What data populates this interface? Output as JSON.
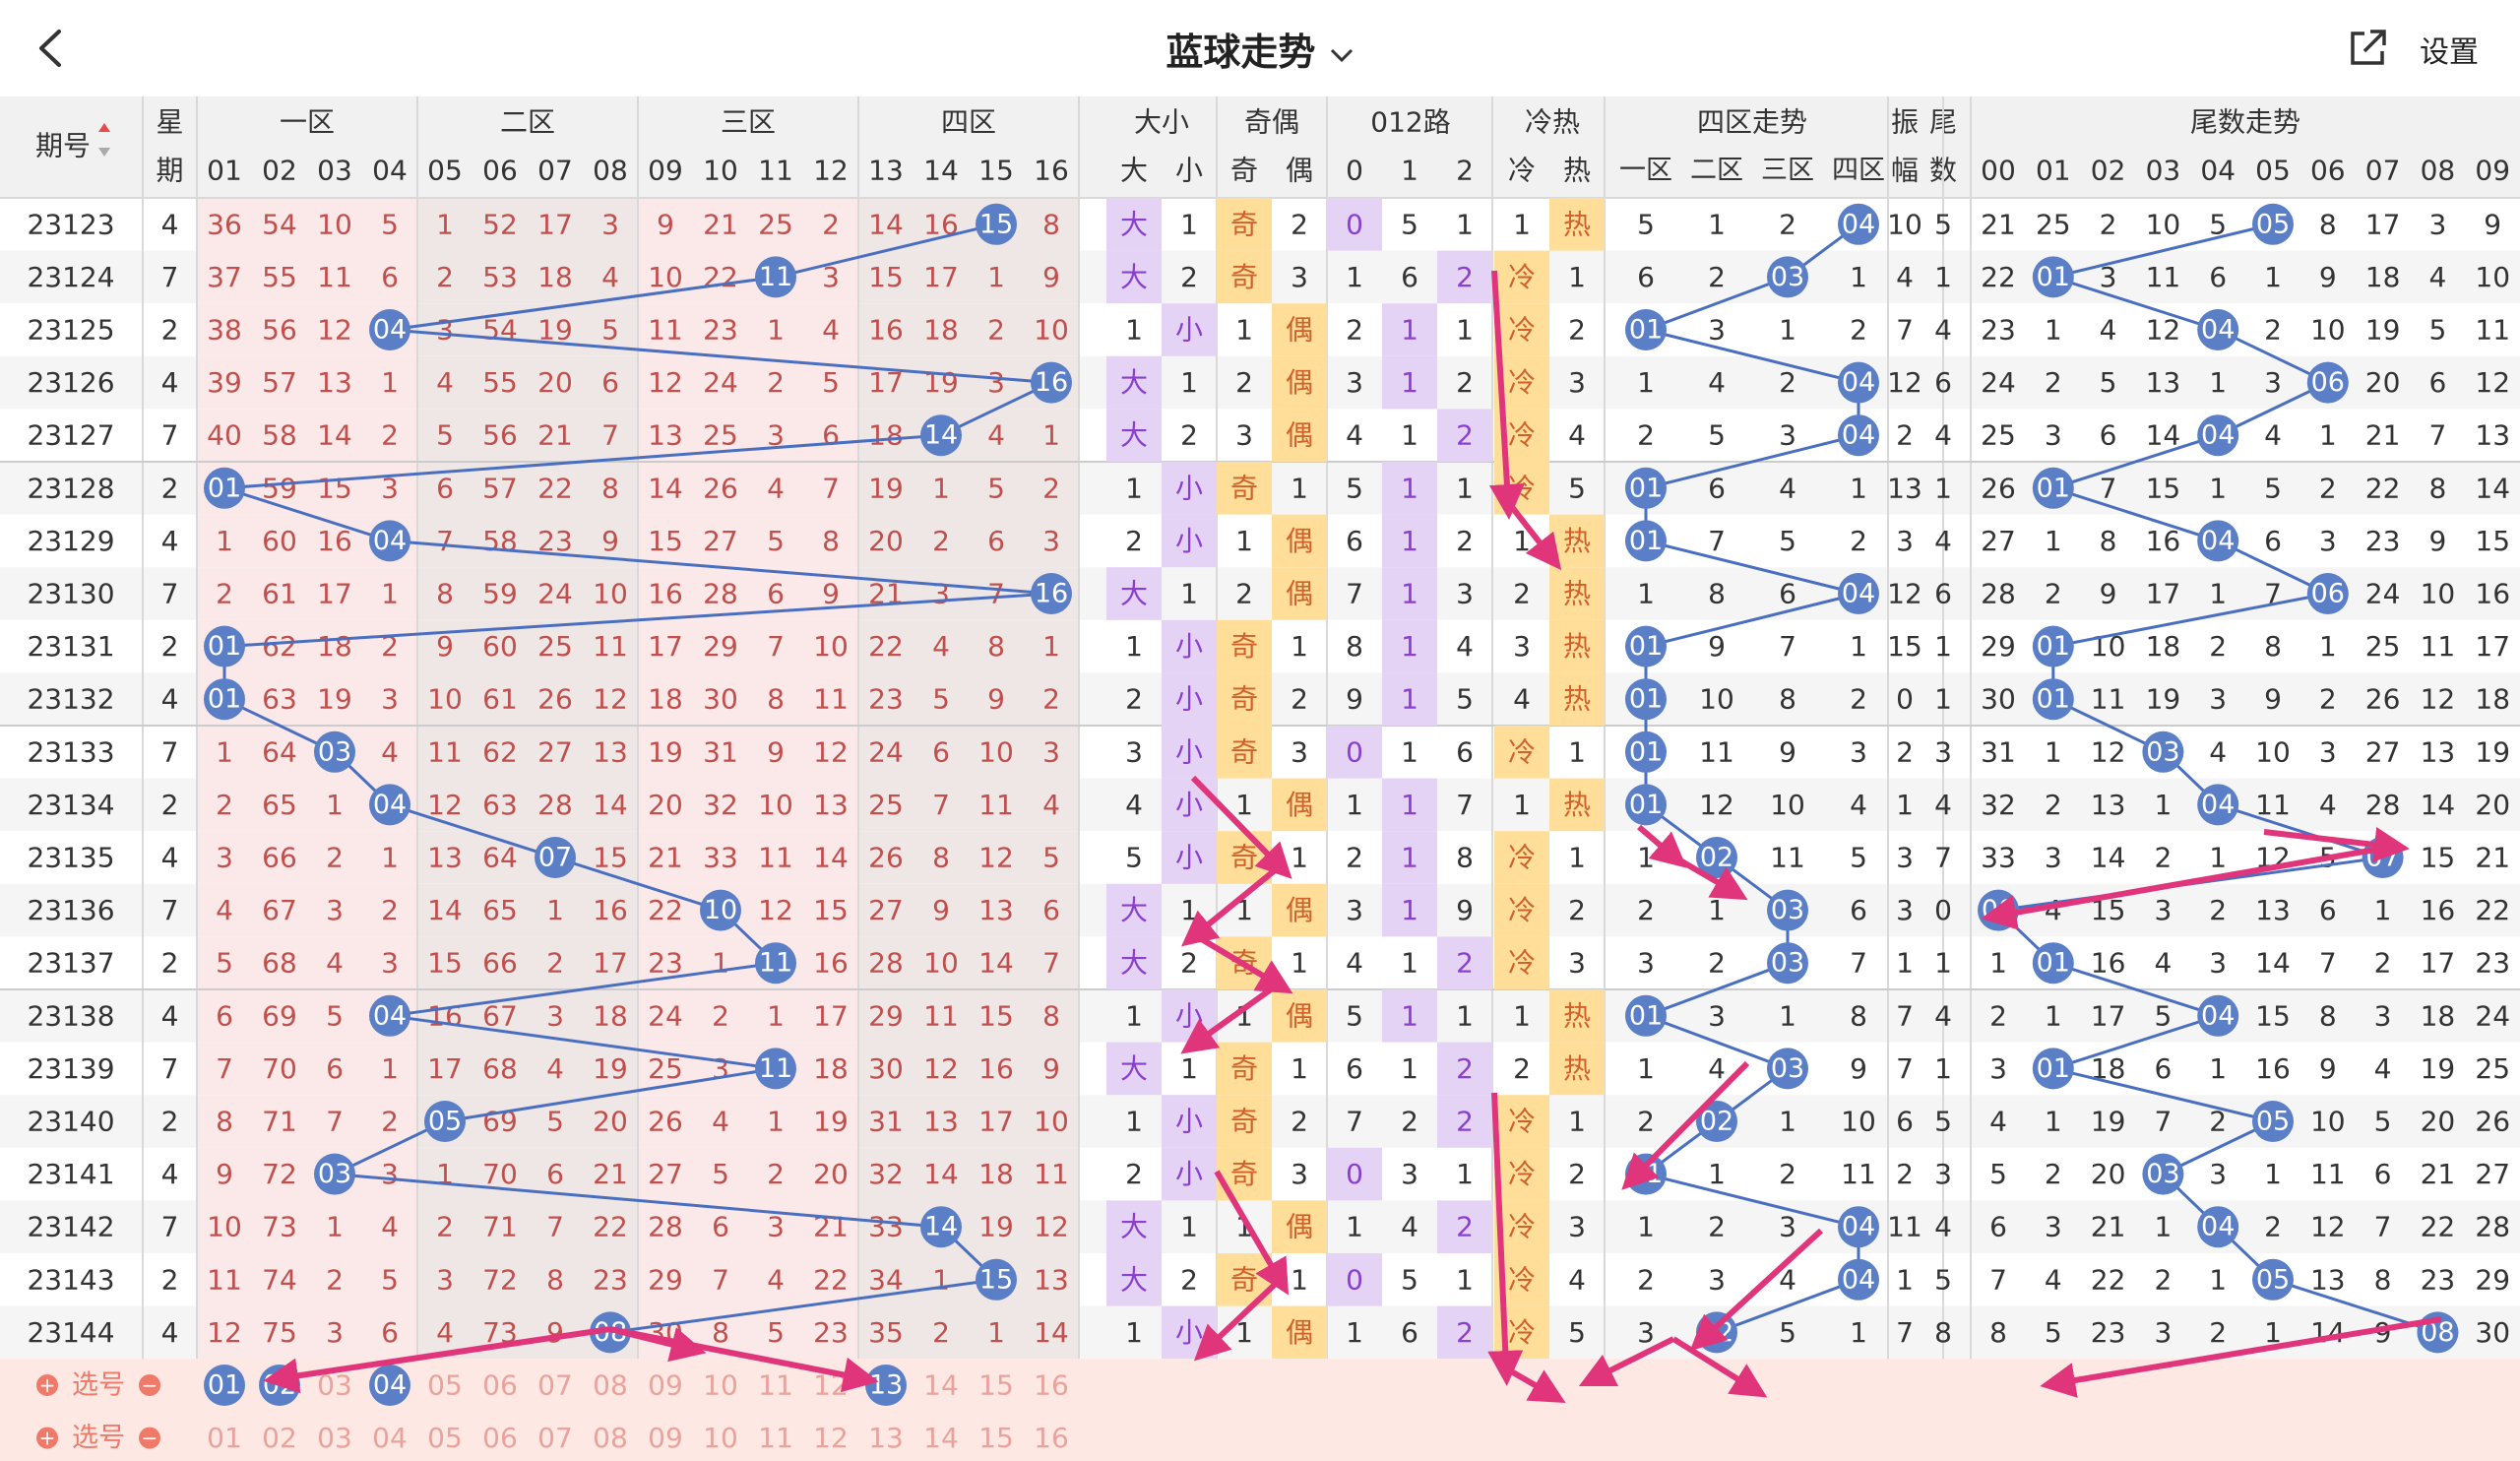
{
  "header": {
    "title": "蓝球走势",
    "settings_label": "设置"
  },
  "col_headers": {
    "issue": "期号",
    "week_top": "星",
    "week_bottom": "期",
    "zones": [
      "一区",
      "二区",
      "三区",
      "四区"
    ],
    "size": "大小",
    "size_sub": [
      "大",
      "小"
    ],
    "parity": "奇偶",
    "parity_sub": [
      "奇",
      "偶"
    ],
    "road": "012路",
    "road_sub": [
      "0",
      "1",
      "2"
    ],
    "hotcold": "冷热",
    "hotcold_sub": [
      "冷",
      "热"
    ],
    "zone_trend": "四区走势",
    "zone_trend_sub": [
      "一区",
      "二区",
      "三区",
      "四区"
    ],
    "amp_top": "振",
    "amp_bottom": "幅",
    "tail_top": "尾",
    "tail_bottom": "数",
    "tail_trend": "尾数走势",
    "numbers": [
      "01",
      "02",
      "03",
      "04",
      "05",
      "06",
      "07",
      "08",
      "09",
      "10",
      "11",
      "12",
      "13",
      "14",
      "15",
      "16"
    ],
    "tail_digits": [
      "00",
      "01",
      "02",
      "03",
      "04",
      "05",
      "06",
      "07",
      "08",
      "09"
    ]
  },
  "rows": [
    {
      "issue": "23123",
      "week": "4",
      "ball": 15,
      "misses": [
        36,
        54,
        10,
        5,
        1,
        52,
        17,
        3,
        9,
        21,
        25,
        2,
        14,
        16,
        0,
        8
      ],
      "size": "大",
      "size_o": 1,
      "parity": "奇",
      "parity_o": 2,
      "road": 0,
      "road_o": [
        0,
        5,
        1
      ],
      "hc": "热",
      "hc_o": 1,
      "zone_o": [
        5,
        1,
        2,
        0
      ],
      "amp": 10,
      "tail": 5,
      "tails": [
        21,
        25,
        2,
        10,
        5,
        0,
        8,
        17,
        3,
        9
      ]
    },
    {
      "issue": "23124",
      "week": "7",
      "ball": 11,
      "misses": [
        37,
        55,
        11,
        6,
        2,
        53,
        18,
        4,
        10,
        22,
        0,
        3,
        15,
        17,
        1,
        9
      ],
      "size": "大",
      "size_o": 2,
      "parity": "奇",
      "parity_o": 3,
      "road": 2,
      "road_o": [
        1,
        6,
        0
      ],
      "hc": "冷",
      "hc_o": 1,
      "zone_o": [
        6,
        2,
        0,
        1
      ],
      "amp": 4,
      "tail": 1,
      "tails": [
        22,
        0,
        3,
        11,
        6,
        1,
        9,
        18,
        4,
        10
      ]
    },
    {
      "issue": "23125",
      "week": "2",
      "ball": 4,
      "misses": [
        38,
        56,
        12,
        0,
        3,
        54,
        19,
        5,
        11,
        23,
        1,
        4,
        16,
        18,
        2,
        10
      ],
      "size": "小",
      "size_o": 1,
      "parity": "偶",
      "parity_o": 1,
      "road": 1,
      "road_o": [
        2,
        0,
        1
      ],
      "hc": "冷",
      "hc_o": 2,
      "zone_o": [
        0,
        3,
        1,
        2
      ],
      "amp": 7,
      "tail": 4,
      "tails": [
        23,
        1,
        4,
        12,
        0,
        2,
        10,
        19,
        5,
        11
      ]
    },
    {
      "issue": "23126",
      "week": "4",
      "ball": 16,
      "misses": [
        39,
        57,
        13,
        1,
        4,
        55,
        20,
        6,
        12,
        24,
        2,
        5,
        17,
        19,
        3,
        0
      ],
      "size": "大",
      "size_o": 1,
      "parity": "偶",
      "parity_o": 2,
      "road": 1,
      "road_o": [
        3,
        0,
        2
      ],
      "hc": "冷",
      "hc_o": 3,
      "zone_o": [
        1,
        4,
        2,
        0
      ],
      "amp": 12,
      "tail": 6,
      "tails": [
        24,
        2,
        5,
        13,
        1,
        3,
        0,
        20,
        6,
        12
      ]
    },
    {
      "issue": "23127",
      "week": "7",
      "ball": 14,
      "misses": [
        40,
        58,
        14,
        2,
        5,
        56,
        21,
        7,
        13,
        25,
        3,
        6,
        18,
        0,
        4,
        1
      ],
      "size": "大",
      "size_o": 2,
      "parity": "偶",
      "parity_o": 3,
      "road": 2,
      "road_o": [
        4,
        1,
        0
      ],
      "hc": "冷",
      "hc_o": 4,
      "zone_o": [
        2,
        5,
        3,
        0
      ],
      "amp": 2,
      "tail": 4,
      "tails": [
        25,
        3,
        6,
        14,
        0,
        4,
        1,
        21,
        7,
        13
      ]
    },
    {
      "issue": "23128",
      "week": "2",
      "ball": 1,
      "misses": [
        0,
        59,
        15,
        3,
        6,
        57,
        22,
        8,
        14,
        26,
        4,
        7,
        19,
        1,
        5,
        2
      ],
      "size": "小",
      "size_o": 1,
      "parity": "奇",
      "parity_o": 1,
      "road": 1,
      "road_o": [
        5,
        0,
        1
      ],
      "hc": "冷",
      "hc_o": 5,
      "zone_o": [
        0,
        6,
        4,
        1
      ],
      "amp": 13,
      "tail": 1,
      "tails": [
        26,
        0,
        7,
        15,
        1,
        5,
        2,
        22,
        8,
        14
      ]
    },
    {
      "issue": "23129",
      "week": "4",
      "ball": 4,
      "misses": [
        1,
        60,
        16,
        0,
        7,
        58,
        23,
        9,
        15,
        27,
        5,
        8,
        20,
        2,
        6,
        3
      ],
      "size": "小",
      "size_o": 2,
      "parity": "偶",
      "parity_o": 1,
      "road": 1,
      "road_o": [
        6,
        0,
        2
      ],
      "hc": "热",
      "hc_o": 1,
      "zone_o": [
        0,
        7,
        5,
        2
      ],
      "amp": 3,
      "tail": 4,
      "tails": [
        27,
        1,
        8,
        16,
        0,
        6,
        3,
        23,
        9,
        15
      ]
    },
    {
      "issue": "23130",
      "week": "7",
      "ball": 16,
      "misses": [
        2,
        61,
        17,
        1,
        8,
        59,
        24,
        10,
        16,
        28,
        6,
        9,
        21,
        3,
        7,
        0
      ],
      "size": "大",
      "size_o": 1,
      "parity": "偶",
      "parity_o": 2,
      "road": 1,
      "road_o": [
        7,
        0,
        3
      ],
      "hc": "热",
      "hc_o": 2,
      "zone_o": [
        1,
        8,
        6,
        0
      ],
      "amp": 12,
      "tail": 6,
      "tails": [
        28,
        2,
        9,
        17,
        1,
        7,
        0,
        24,
        10,
        16
      ]
    },
    {
      "issue": "23131",
      "week": "2",
      "ball": 1,
      "misses": [
        0,
        62,
        18,
        2,
        9,
        60,
        25,
        11,
        17,
        29,
        7,
        10,
        22,
        4,
        8,
        1
      ],
      "size": "小",
      "size_o": 1,
      "parity": "奇",
      "parity_o": 1,
      "road": 1,
      "road_o": [
        8,
        0,
        4
      ],
      "hc": "热",
      "hc_o": 3,
      "zone_o": [
        0,
        9,
        7,
        1
      ],
      "amp": 15,
      "tail": 1,
      "tails": [
        29,
        0,
        10,
        18,
        2,
        8,
        1,
        25,
        11,
        17
      ]
    },
    {
      "issue": "23132",
      "week": "4",
      "ball": 1,
      "misses": [
        0,
        63,
        19,
        3,
        10,
        61,
        26,
        12,
        18,
        30,
        8,
        11,
        23,
        5,
        9,
        2
      ],
      "size": "小",
      "size_o": 2,
      "parity": "奇",
      "parity_o": 2,
      "road": 1,
      "road_o": [
        9,
        0,
        5
      ],
      "hc": "热",
      "hc_o": 4,
      "zone_o": [
        0,
        10,
        8,
        2
      ],
      "amp": 0,
      "tail": 1,
      "tails": [
        30,
        0,
        11,
        19,
        3,
        9,
        2,
        26,
        12,
        18
      ]
    },
    {
      "issue": "23133",
      "week": "7",
      "ball": 3,
      "misses": [
        1,
        64,
        0,
        4,
        11,
        62,
        27,
        13,
        19,
        31,
        9,
        12,
        24,
        6,
        10,
        3
      ],
      "size": "小",
      "size_o": 3,
      "parity": "奇",
      "parity_o": 3,
      "road": 0,
      "road_o": [
        0,
        1,
        6
      ],
      "hc": "冷",
      "hc_o": 1,
      "zone_o": [
        0,
        11,
        9,
        3
      ],
      "amp": 2,
      "tail": 3,
      "tails": [
        31,
        1,
        12,
        0,
        4,
        10,
        3,
        27,
        13,
        19
      ]
    },
    {
      "issue": "23134",
      "week": "2",
      "ball": 4,
      "misses": [
        2,
        65,
        1,
        0,
        12,
        63,
        28,
        14,
        20,
        32,
        10,
        13,
        25,
        7,
        11,
        4
      ],
      "size": "小",
      "size_o": 4,
      "parity": "偶",
      "parity_o": 1,
      "road": 1,
      "road_o": [
        1,
        0,
        7
      ],
      "hc": "热",
      "hc_o": 1,
      "zone_o": [
        0,
        12,
        10,
        4
      ],
      "amp": 1,
      "tail": 4,
      "tails": [
        32,
        2,
        13,
        1,
        0,
        11,
        4,
        28,
        14,
        20
      ]
    },
    {
      "issue": "23135",
      "week": "4",
      "ball": 7,
      "misses": [
        3,
        66,
        2,
        1,
        13,
        64,
        0,
        15,
        21,
        33,
        11,
        14,
        26,
        8,
        12,
        5
      ],
      "size": "小",
      "size_o": 5,
      "parity": "奇",
      "parity_o": 1,
      "road": 1,
      "road_o": [
        2,
        0,
        8
      ],
      "hc": "冷",
      "hc_o": 1,
      "zone_o": [
        1,
        0,
        11,
        5
      ],
      "amp": 3,
      "tail": 7,
      "tails": [
        33,
        3,
        14,
        2,
        1,
        12,
        5,
        0,
        15,
        21
      ]
    },
    {
      "issue": "23136",
      "week": "7",
      "ball": 10,
      "misses": [
        4,
        67,
        3,
        2,
        14,
        65,
        1,
        16,
        22,
        0,
        12,
        15,
        27,
        9,
        13,
        6
      ],
      "size": "大",
      "size_o": 1,
      "parity": "偶",
      "parity_o": 1,
      "road": 1,
      "road_o": [
        3,
        0,
        9
      ],
      "hc": "冷",
      "hc_o": 2,
      "zone_o": [
        2,
        1,
        0,
        6
      ],
      "amp": 3,
      "tail": 0,
      "tails": [
        0,
        4,
        15,
        3,
        2,
        13,
        6,
        1,
        16,
        22
      ]
    },
    {
      "issue": "23137",
      "week": "2",
      "ball": 11,
      "misses": [
        5,
        68,
        4,
        3,
        15,
        66,
        2,
        17,
        23,
        1,
        0,
        16,
        28,
        10,
        14,
        7
      ],
      "size": "大",
      "size_o": 2,
      "parity": "奇",
      "parity_o": 1,
      "road": 2,
      "road_o": [
        4,
        1,
        0
      ],
      "hc": "冷",
      "hc_o": 3,
      "zone_o": [
        3,
        2,
        0,
        7
      ],
      "amp": 1,
      "tail": 1,
      "tails": [
        1,
        0,
        16,
        4,
        3,
        14,
        7,
        2,
        17,
        23
      ]
    },
    {
      "issue": "23138",
      "week": "4",
      "ball": 4,
      "misses": [
        6,
        69,
        5,
        0,
        16,
        67,
        3,
        18,
        24,
        2,
        1,
        17,
        29,
        11,
        15,
        8
      ],
      "size": "小",
      "size_o": 1,
      "parity": "偶",
      "parity_o": 1,
      "road": 1,
      "road_o": [
        5,
        0,
        1
      ],
      "hc": "热",
      "hc_o": 1,
      "zone_o": [
        0,
        3,
        1,
        8
      ],
      "amp": 7,
      "tail": 4,
      "tails": [
        2,
        1,
        17,
        5,
        0,
        15,
        8,
        3,
        18,
        24
      ]
    },
    {
      "issue": "23139",
      "week": "7",
      "ball": 11,
      "misses": [
        7,
        70,
        6,
        1,
        17,
        68,
        4,
        19,
        25,
        3,
        0,
        18,
        30,
        12,
        16,
        9
      ],
      "size": "大",
      "size_o": 1,
      "parity": "奇",
      "parity_o": 1,
      "road": 2,
      "road_o": [
        6,
        1,
        0
      ],
      "hc": "热",
      "hc_o": 2,
      "zone_o": [
        1,
        4,
        0,
        9
      ],
      "amp": 7,
      "tail": 1,
      "tails": [
        3,
        0,
        18,
        6,
        1,
        16,
        9,
        4,
        19,
        25
      ]
    },
    {
      "issue": "23140",
      "week": "2",
      "ball": 5,
      "misses": [
        8,
        71,
        7,
        2,
        0,
        69,
        5,
        20,
        26,
        4,
        1,
        19,
        31,
        13,
        17,
        10
      ],
      "size": "小",
      "size_o": 1,
      "parity": "奇",
      "parity_o": 2,
      "road": 2,
      "road_o": [
        7,
        2,
        0
      ],
      "hc": "冷",
      "hc_o": 1,
      "zone_o": [
        2,
        0,
        1,
        10
      ],
      "amp": 6,
      "tail": 5,
      "tails": [
        4,
        1,
        19,
        7,
        2,
        0,
        10,
        5,
        20,
        26
      ]
    },
    {
      "issue": "23141",
      "week": "4",
      "ball": 3,
      "misses": [
        9,
        72,
        0,
        3,
        1,
        70,
        6,
        21,
        27,
        5,
        2,
        20,
        32,
        14,
        18,
        11
      ],
      "size": "小",
      "size_o": 2,
      "parity": "奇",
      "parity_o": 3,
      "road": 0,
      "road_o": [
        0,
        3,
        1
      ],
      "hc": "冷",
      "hc_o": 2,
      "zone_o": [
        0,
        1,
        2,
        11
      ],
      "amp": 2,
      "tail": 3,
      "tails": [
        5,
        2,
        20,
        0,
        3,
        1,
        11,
        6,
        21,
        27
      ]
    },
    {
      "issue": "23142",
      "week": "7",
      "ball": 14,
      "misses": [
        10,
        73,
        1,
        4,
        2,
        71,
        7,
        22,
        28,
        6,
        3,
        21,
        33,
        0,
        19,
        12
      ],
      "size": "大",
      "size_o": 1,
      "parity": "偶",
      "parity_o": 1,
      "road": 2,
      "road_o": [
        1,
        4,
        0
      ],
      "hc": "冷",
      "hc_o": 3,
      "zone_o": [
        1,
        2,
        3,
        0
      ],
      "amp": 11,
      "tail": 4,
      "tails": [
        6,
        3,
        21,
        1,
        0,
        2,
        12,
        7,
        22,
        28
      ]
    },
    {
      "issue": "23143",
      "week": "2",
      "ball": 15,
      "misses": [
        11,
        74,
        2,
        5,
        3,
        72,
        8,
        23,
        29,
        7,
        4,
        22,
        34,
        1,
        0,
        13
      ],
      "size": "大",
      "size_o": 2,
      "parity": "奇",
      "parity_o": 1,
      "road": 0,
      "road_o": [
        0,
        5,
        1
      ],
      "hc": "冷",
      "hc_o": 4,
      "zone_o": [
        2,
        3,
        4,
        0
      ],
      "amp": 1,
      "tail": 5,
      "tails": [
        7,
        4,
        22,
        2,
        1,
        0,
        13,
        8,
        23,
        29
      ]
    },
    {
      "issue": "23144",
      "week": "4",
      "ball": 8,
      "misses": [
        12,
        75,
        3,
        6,
        4,
        73,
        9,
        0,
        30,
        8,
        5,
        23,
        35,
        2,
        1,
        14
      ],
      "size": "小",
      "size_o": 1,
      "parity": "偶",
      "parity_o": 1,
      "road": 2,
      "road_o": [
        1,
        6,
        0
      ],
      "hc": "冷",
      "hc_o": 5,
      "zone_o": [
        3,
        0,
        5,
        1
      ],
      "amp": 7,
      "tail": 8,
      "tails": [
        8,
        5,
        23,
        3,
        2,
        1,
        14,
        9,
        0,
        30
      ]
    }
  ],
  "select_rows": [
    {
      "label": "选号",
      "selected": [
        "01",
        "02",
        "04",
        "13"
      ]
    },
    {
      "label": "选号",
      "selected": []
    }
  ],
  "colors": {
    "ball": "#5b7fc7",
    "line": "#4a6fc0",
    "arrow": "#e0357b",
    "miss_text": "#c0504d",
    "alt_pink": "#fbe9e9",
    "alt_gray": "#efe6e6",
    "purple": "#e4d3f5",
    "yellow": "#ffde9a"
  }
}
